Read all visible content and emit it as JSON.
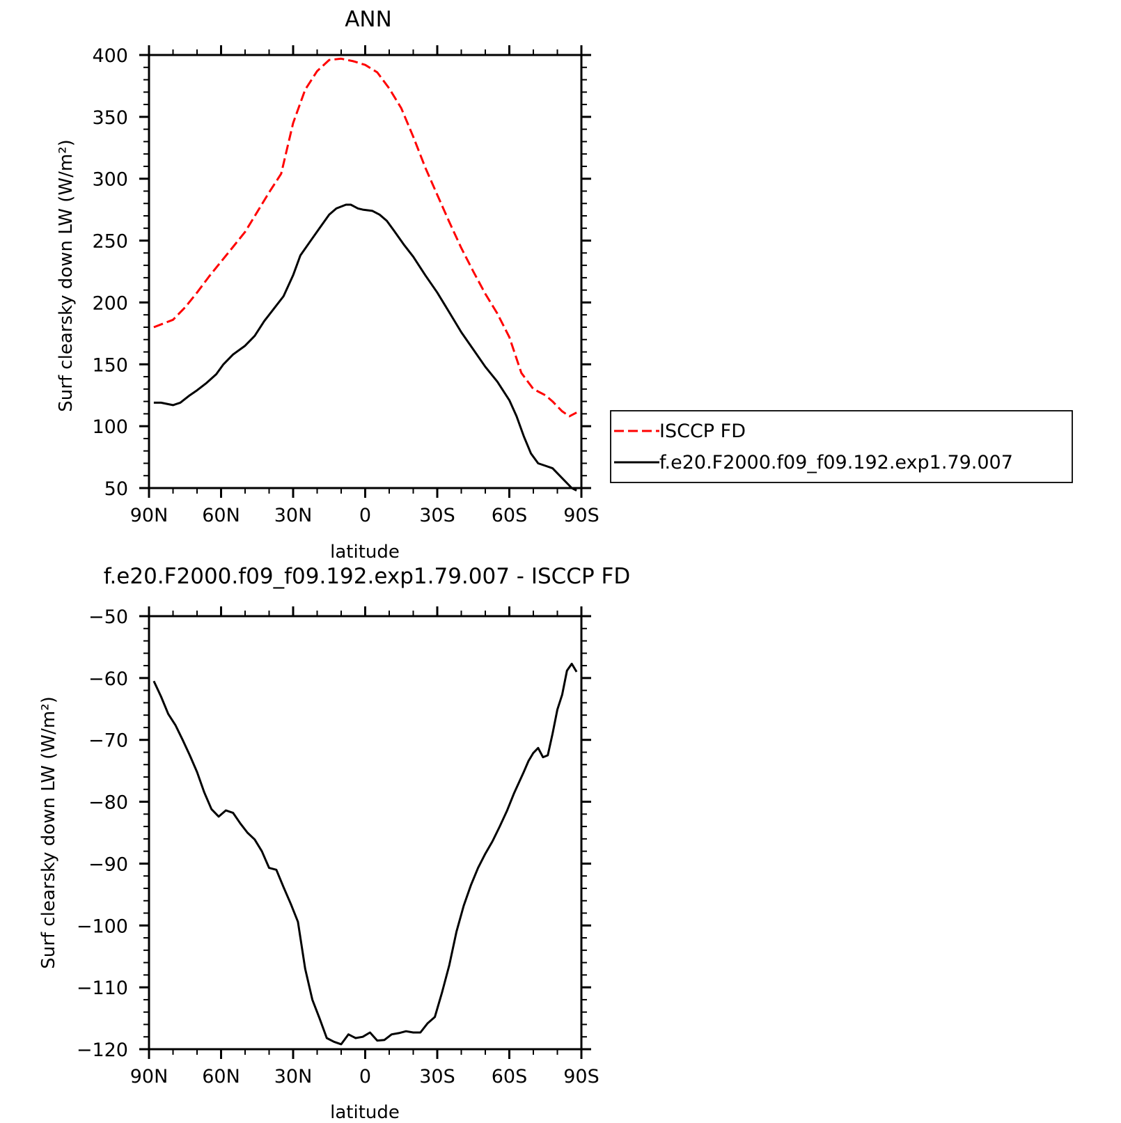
{
  "chart_data": [
    {
      "type": "line",
      "title": "ANN",
      "xlabel": "latitude",
      "ylabel": "Surf clearsky down LW (W/m²)",
      "xlim": [
        90,
        -90
      ],
      "ylim": [
        50,
        400
      ],
      "x_ticks": [
        {
          "value": 90,
          "label": "90N"
        },
        {
          "value": 60,
          "label": "60N"
        },
        {
          "value": 30,
          "label": "30N"
        },
        {
          "value": 0,
          "label": "0"
        },
        {
          "value": -30,
          "label": "30S"
        },
        {
          "value": -60,
          "label": "60S"
        },
        {
          "value": -90,
          "label": "90S"
        }
      ],
      "y_ticks": [
        50,
        100,
        150,
        200,
        250,
        300,
        350,
        400
      ],
      "legend": {
        "placement": "right"
      },
      "series": [
        {
          "name": "ISCCP FD",
          "color": "#ff0000",
          "dash": true,
          "x": [
            88,
            80,
            75,
            70,
            65,
            60,
            55,
            50,
            45,
            40,
            35,
            30,
            25,
            20,
            15,
            10,
            5,
            0,
            -5,
            -10,
            -15,
            -20,
            -25,
            -30,
            -35,
            -40,
            -45,
            -50,
            -55,
            -60,
            -65,
            -70,
            -75,
            -78,
            -80,
            -82,
            -85,
            -88
          ],
          "values": [
            180,
            186,
            196,
            208,
            221,
            233,
            245,
            257,
            273,
            289,
            304,
            345,
            372,
            387,
            396,
            397,
            395,
            392,
            386,
            373,
            357,
            334,
            309,
            287,
            265,
            244,
            225,
            207,
            191,
            172,
            143,
            130,
            125,
            120,
            116,
            112,
            108,
            111
          ]
        },
        {
          "name": "f.e20.F2000.f09_f09.192.exp1.79.007",
          "color": "#000000",
          "dash": false,
          "x": [
            88,
            85,
            80,
            77,
            73,
            70,
            66,
            62,
            59,
            55,
            50,
            46,
            42,
            38,
            34,
            30,
            27,
            23,
            19,
            15,
            12,
            8,
            6,
            3,
            1,
            -3,
            -6,
            -9,
            -12,
            -16,
            -20,
            -25,
            -30,
            -35,
            -40,
            -45,
            -50,
            -55,
            -60,
            -63,
            -66,
            -69,
            -72,
            -75,
            -78,
            -82,
            -86,
            -88
          ],
          "values": [
            119,
            119,
            117,
            119,
            125,
            129,
            135,
            142,
            150,
            158,
            165,
            173,
            185,
            195,
            205,
            222,
            238,
            249,
            260,
            271,
            276,
            279,
            279,
            276,
            275,
            274,
            271,
            266,
            258,
            247,
            237,
            222,
            208,
            192,
            176,
            162,
            148,
            136,
            121,
            108,
            92,
            78,
            70,
            68,
            66,
            58,
            50,
            48
          ]
        }
      ]
    },
    {
      "type": "line",
      "title": "f.e20.F2000.f09_f09.192.exp1.79.007 - ISCCP FD",
      "xlabel": "latitude",
      "ylabel": "Surf clearsky down LW (W/m²)",
      "xlim": [
        90,
        -90
      ],
      "ylim": [
        -120,
        -50
      ],
      "x_ticks": [
        {
          "value": 90,
          "label": "90N"
        },
        {
          "value": 60,
          "label": "60N"
        },
        {
          "value": 30,
          "label": "30N"
        },
        {
          "value": 0,
          "label": "0"
        },
        {
          "value": -30,
          "label": "30S"
        },
        {
          "value": -60,
          "label": "60S"
        },
        {
          "value": -90,
          "label": "90S"
        }
      ],
      "y_ticks": [
        -50,
        -60,
        -70,
        -80,
        -90,
        -100,
        -110,
        -120
      ],
      "series": [
        {
          "color": "#000000",
          "dash": false,
          "x": [
            88,
            85,
            82,
            79,
            76,
            73,
            70,
            67,
            64,
            61,
            58,
            55,
            52,
            49,
            46,
            43,
            40,
            37,
            34,
            31,
            28,
            25,
            22,
            19,
            16,
            13,
            10,
            7,
            4,
            1,
            -2,
            -5,
            -8,
            -11,
            -14,
            -17,
            -20,
            -23,
            -26,
            -29,
            -32,
            -35,
            -38,
            -41,
            -44,
            -47,
            -50,
            -53,
            -56,
            -59,
            -62,
            -64,
            -66,
            -68,
            -70,
            -72,
            -74,
            -76,
            -78,
            -80,
            -82,
            -84,
            -86,
            -88
          ],
          "values": [
            -60.5,
            -63,
            -65.8,
            -67.6,
            -70,
            -72.5,
            -75.2,
            -78.5,
            -81.2,
            -82.4,
            -81.4,
            -81.8,
            -83.5,
            -85,
            -86.1,
            -88,
            -90.7,
            -91,
            -93.8,
            -96.5,
            -99.4,
            -107,
            -112,
            -115,
            -118.2,
            -118.8,
            -119.2,
            -117.6,
            -118.2,
            -118,
            -117.3,
            -118.6,
            -118.5,
            -117.6,
            -117.4,
            -117.1,
            -117.3,
            -117.3,
            -115.8,
            -114.8,
            -110.8,
            -106.4,
            -101,
            -96.8,
            -93.5,
            -90.7,
            -88.4,
            -86.4,
            -84,
            -81.5,
            -78.6,
            -76.9,
            -75.2,
            -73.4,
            -72.1,
            -71.3,
            -72.8,
            -72.5,
            -69,
            -65.1,
            -62.7,
            -58.8,
            -57.7,
            -59
          ]
        }
      ]
    }
  ]
}
